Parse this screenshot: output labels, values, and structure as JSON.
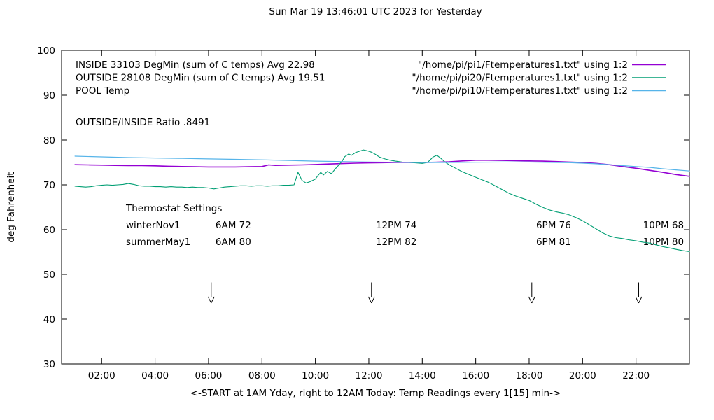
{
  "chart_data": {
    "type": "line",
    "title": "Sun Mar 19 13:46:01 UTC 2023 for Yesterday",
    "xlabel": "<-START at 1AM Yday, right to 12AM Today:  Temp Readings every 1[15] min->",
    "ylabel": "deg Fahrenheit",
    "xlim": [
      0.5,
      24
    ],
    "ylim": [
      30,
      100
    ],
    "grid": false,
    "legend_position": "top-inside",
    "yticks": [
      30,
      40,
      50,
      60,
      70,
      80,
      90,
      100
    ],
    "xticks": [
      {
        "v": 2,
        "label": "02:00"
      },
      {
        "v": 4,
        "label": "04:00"
      },
      {
        "v": 6,
        "label": "06:00"
      },
      {
        "v": 8,
        "label": "08:00"
      },
      {
        "v": 10,
        "label": "10:00"
      },
      {
        "v": 12,
        "label": "12:00"
      },
      {
        "v": 14,
        "label": "14:00"
      },
      {
        "v": 16,
        "label": "16:00"
      },
      {
        "v": 18,
        "label": "18:00"
      },
      {
        "v": 20,
        "label": "20:00"
      },
      {
        "v": 22,
        "label": "22:00"
      }
    ],
    "legend": {
      "entries": [
        {
          "label": "INSIDE 33103 DegMin (sum of C temps) Avg 22.98",
          "source": "\"/home/pi/pi1/Ftemperatures1.txt\" using 1:2",
          "color": "#9400d3"
        },
        {
          "label": "OUTSIDE 28108 DegMin (sum of C temps) Avg 19.51",
          "source": "\"/home/pi/pi20/Ftemperatures1.txt\" using 1:2",
          "color": "#009e73"
        },
        {
          "label": "POOL Temp",
          "source": "\"/home/pi/pi10/Ftemperatures1.txt\" using 1:2",
          "color": "#56b4e9"
        }
      ]
    },
    "annotations": {
      "ratio": "OUTSIDE/INSIDE Ratio .8491",
      "thermostat": {
        "heading": "Thermostat Settings",
        "columns_t": [
          6,
          12,
          18,
          22
        ],
        "rows": [
          {
            "name": "winterNov1",
            "values": [
              "6AM 72",
              "12PM 74",
              "6PM 76",
              "10PM 68"
            ]
          },
          {
            "name": "summerMay1",
            "values": [
              "6AM 80",
              "12PM 82",
              "6PM 81",
              "10PM 80"
            ]
          }
        ]
      },
      "arrows": [
        {
          "x": 6.1,
          "y_tail": 48.2,
          "y_tip": 43.6
        },
        {
          "x": 12.1,
          "y_tail": 48.2,
          "y_tip": 43.6
        },
        {
          "x": 18.1,
          "y_tail": 48.2,
          "y_tip": 43.6
        },
        {
          "x": 22.1,
          "y_tail": 48.2,
          "y_tip": 43.6
        }
      ]
    },
    "series": [
      {
        "name": "INSIDE",
        "color": "#9400d3",
        "points": [
          [
            1,
            74.5
          ],
          [
            1.5,
            74.45
          ],
          [
            2,
            74.4
          ],
          [
            2.5,
            74.35
          ],
          [
            3,
            74.3
          ],
          [
            3.5,
            74.3
          ],
          [
            4,
            74.25
          ],
          [
            4.5,
            74.15
          ],
          [
            5,
            74.1
          ],
          [
            5.5,
            74.05
          ],
          [
            6,
            74
          ],
          [
            6.5,
            74
          ],
          [
            7,
            74
          ],
          [
            7.5,
            74.05
          ],
          [
            8,
            74.1
          ],
          [
            8.25,
            74.45
          ],
          [
            8.5,
            74.35
          ],
          [
            9,
            74.4
          ],
          [
            9.5,
            74.45
          ],
          [
            10,
            74.55
          ],
          [
            10.5,
            74.65
          ],
          [
            11,
            74.75
          ],
          [
            11.5,
            74.85
          ],
          [
            12,
            74.9
          ],
          [
            12.5,
            74.95
          ],
          [
            13,
            75
          ],
          [
            13.5,
            75
          ],
          [
            14,
            75
          ],
          [
            14.5,
            75.05
          ],
          [
            15,
            75.15
          ],
          [
            15.5,
            75.35
          ],
          [
            16,
            75.5
          ],
          [
            16.5,
            75.5
          ],
          [
            17,
            75.45
          ],
          [
            17.5,
            75.4
          ],
          [
            18,
            75.35
          ],
          [
            18.5,
            75.3
          ],
          [
            19,
            75.2
          ],
          [
            19.5,
            75.1
          ],
          [
            20,
            75
          ],
          [
            20.5,
            74.8
          ],
          [
            21,
            74.5
          ],
          [
            21.5,
            74.1
          ],
          [
            22,
            73.7
          ],
          [
            22.5,
            73.25
          ],
          [
            23,
            72.8
          ],
          [
            23.5,
            72.3
          ],
          [
            24,
            71.9
          ]
        ]
      },
      {
        "name": "OUTSIDE",
        "color": "#009e73",
        "points": [
          [
            1,
            69.7
          ],
          [
            1.2,
            69.6
          ],
          [
            1.4,
            69.5
          ],
          [
            1.6,
            69.6
          ],
          [
            1.8,
            69.8
          ],
          [
            2,
            69.9
          ],
          [
            2.2,
            70
          ],
          [
            2.4,
            69.9
          ],
          [
            2.6,
            70
          ],
          [
            2.8,
            70.1
          ],
          [
            3,
            70.3
          ],
          [
            3.2,
            70.1
          ],
          [
            3.4,
            69.8
          ],
          [
            3.6,
            69.7
          ],
          [
            3.8,
            69.7
          ],
          [
            4,
            69.6
          ],
          [
            4.2,
            69.6
          ],
          [
            4.4,
            69.5
          ],
          [
            4.6,
            69.6
          ],
          [
            4.8,
            69.5
          ],
          [
            5,
            69.5
          ],
          [
            5.2,
            69.4
          ],
          [
            5.4,
            69.5
          ],
          [
            5.6,
            69.4
          ],
          [
            5.8,
            69.4
          ],
          [
            6,
            69.3
          ],
          [
            6.2,
            69.1
          ],
          [
            6.4,
            69.3
          ],
          [
            6.6,
            69.5
          ],
          [
            6.8,
            69.6
          ],
          [
            7,
            69.7
          ],
          [
            7.2,
            69.8
          ],
          [
            7.4,
            69.8
          ],
          [
            7.6,
            69.7
          ],
          [
            7.8,
            69.8
          ],
          [
            8,
            69.8
          ],
          [
            8.2,
            69.7
          ],
          [
            8.4,
            69.8
          ],
          [
            8.6,
            69.8
          ],
          [
            8.8,
            69.9
          ],
          [
            9,
            69.9
          ],
          [
            9.2,
            70
          ],
          [
            9.35,
            72.8
          ],
          [
            9.5,
            71
          ],
          [
            9.65,
            70.4
          ],
          [
            9.8,
            70.7
          ],
          [
            10,
            71.3
          ],
          [
            10.1,
            72.1
          ],
          [
            10.2,
            72.8
          ],
          [
            10.3,
            72.2
          ],
          [
            10.45,
            73
          ],
          [
            10.6,
            72.5
          ],
          [
            10.75,
            73.6
          ],
          [
            10.9,
            74.6
          ],
          [
            11,
            75.3
          ],
          [
            11.1,
            76.3
          ],
          [
            11.25,
            76.9
          ],
          [
            11.35,
            76.6
          ],
          [
            11.5,
            77.2
          ],
          [
            11.65,
            77.5
          ],
          [
            11.8,
            77.8
          ],
          [
            11.95,
            77.6
          ],
          [
            12.1,
            77.3
          ],
          [
            12.25,
            76.8
          ],
          [
            12.4,
            76.2
          ],
          [
            12.6,
            75.8
          ],
          [
            12.8,
            75.5
          ],
          [
            13,
            75.3
          ],
          [
            13.25,
            75.1
          ],
          [
            13.5,
            75
          ],
          [
            13.75,
            74.9
          ],
          [
            14,
            74.8
          ],
          [
            14.2,
            75
          ],
          [
            14.4,
            76.2
          ],
          [
            14.55,
            76.6
          ],
          [
            14.7,
            75.9
          ],
          [
            14.85,
            75.1
          ],
          [
            15,
            74.5
          ],
          [
            15.25,
            73.7
          ],
          [
            15.5,
            72.9
          ],
          [
            15.75,
            72.3
          ],
          [
            16,
            71.7
          ],
          [
            16.25,
            71.1
          ],
          [
            16.5,
            70.5
          ],
          [
            16.75,
            69.7
          ],
          [
            17,
            68.9
          ],
          [
            17.25,
            68.1
          ],
          [
            17.5,
            67.5
          ],
          [
            17.75,
            67
          ],
          [
            18,
            66.5
          ],
          [
            18.25,
            65.7
          ],
          [
            18.5,
            65
          ],
          [
            18.75,
            64.4
          ],
          [
            19,
            64
          ],
          [
            19.25,
            63.7
          ],
          [
            19.5,
            63.3
          ],
          [
            19.75,
            62.7
          ],
          [
            20,
            62
          ],
          [
            20.25,
            61.1
          ],
          [
            20.5,
            60.2
          ],
          [
            20.75,
            59.3
          ],
          [
            21,
            58.6
          ],
          [
            21.25,
            58.2
          ],
          [
            21.5,
            58
          ],
          [
            21.75,
            57.7
          ],
          [
            22,
            57.5
          ],
          [
            22.25,
            57.2
          ],
          [
            22.5,
            57
          ],
          [
            22.75,
            56.6
          ],
          [
            23,
            56.2
          ],
          [
            23.25,
            55.9
          ],
          [
            23.5,
            55.6
          ],
          [
            23.75,
            55.3
          ],
          [
            24,
            55.1
          ]
        ]
      },
      {
        "name": "POOL",
        "color": "#56b4e9",
        "points": [
          [
            1,
            76.4
          ],
          [
            2,
            76.25
          ],
          [
            3,
            76.1
          ],
          [
            4,
            76
          ],
          [
            5,
            75.9
          ],
          [
            6,
            75.8
          ],
          [
            7,
            75.7
          ],
          [
            8,
            75.6
          ],
          [
            9,
            75.45
          ],
          [
            10,
            75.3
          ],
          [
            11,
            75.2
          ],
          [
            12,
            75.1
          ],
          [
            13,
            75.05
          ],
          [
            14,
            75
          ],
          [
            15,
            75
          ],
          [
            16,
            75.05
          ],
          [
            17,
            75.1
          ],
          [
            18,
            75.1
          ],
          [
            19,
            75
          ],
          [
            19.5,
            74.95
          ],
          [
            20,
            74.85
          ],
          [
            20.5,
            74.7
          ],
          [
            21,
            74.5
          ],
          [
            21.5,
            74.3
          ],
          [
            22,
            74.1
          ],
          [
            22.5,
            73.9
          ],
          [
            23,
            73.6
          ],
          [
            23.5,
            73.35
          ],
          [
            24,
            73.1
          ]
        ]
      }
    ]
  }
}
